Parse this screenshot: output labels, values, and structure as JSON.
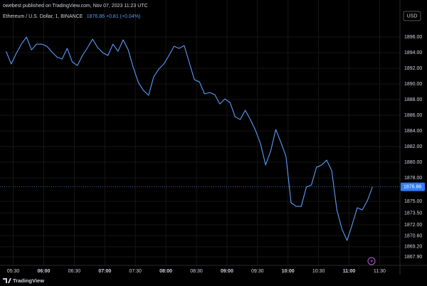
{
  "publisher_line": "owebest published on TradingView.com, Nov 07, 2023 11:23 UTC",
  "quote": "1876.86 +0.81 (+0.04%)",
  "currency": "USD",
  "brand": "TradingView",
  "chart_data": {
    "type": "line",
    "title": "Ethereum / U.S. Dollar, 1, BINANCE",
    "x": [
      "05:23",
      "05:28",
      "05:33",
      "05:38",
      "05:43",
      "05:48",
      "05:53",
      "05:58",
      "06:03",
      "06:08",
      "06:13",
      "06:18",
      "06:23",
      "06:28",
      "06:33",
      "06:38",
      "06:43",
      "06:48",
      "06:53",
      "06:58",
      "07:03",
      "07:08",
      "07:13",
      "07:18",
      "07:23",
      "07:28",
      "07:33",
      "07:38",
      "07:43",
      "07:48",
      "07:53",
      "07:58",
      "08:03",
      "08:08",
      "08:13",
      "08:18",
      "08:23",
      "08:28",
      "08:33",
      "08:38",
      "08:43",
      "08:48",
      "08:53",
      "08:58",
      "09:03",
      "09:08",
      "09:13",
      "09:18",
      "09:23",
      "09:28",
      "09:33",
      "09:38",
      "09:43",
      "09:48",
      "09:53",
      "09:58",
      "10:03",
      "10:08",
      "10:13",
      "10:18",
      "10:23",
      "10:28",
      "10:33",
      "10:38",
      "10:43",
      "10:48",
      "10:53",
      "10:58",
      "11:03",
      "11:08",
      "11:13",
      "11:18",
      "11:23"
    ],
    "series": [
      {
        "color": "#5b9cf6",
        "values": [
          1894.18,
          1892.55,
          1893.91,
          1895.09,
          1896.0,
          1894.36,
          1895.09,
          1895.09,
          1894.82,
          1894.09,
          1893.45,
          1893.18,
          1894.55,
          1892.82,
          1892.36,
          1893.64,
          1894.64,
          1895.73,
          1894.64,
          1894.0,
          1893.64,
          1895.09,
          1894.18,
          1895.64,
          1894.36,
          1892.09,
          1890.18,
          1889.18,
          1888.55,
          1890.91,
          1891.91,
          1892.55,
          1893.64,
          1894.82,
          1894.55,
          1894.91,
          1892.73,
          1890.55,
          1890.27,
          1888.73,
          1888.91,
          1888.64,
          1887.45,
          1888.09,
          1887.64,
          1885.82,
          1885.45,
          1886.64,
          1885.45,
          1884.09,
          1882.36,
          1879.64,
          1881.45,
          1884.18,
          1882.55,
          1880.73,
          1874.82,
          1874.36,
          1874.36,
          1876.82,
          1877.09,
          1879.36,
          1879.64,
          1880.27,
          1878.91,
          1873.91,
          1871.45,
          1870.0,
          1872.0,
          1874.18,
          1873.91,
          1875.09,
          1876.86
        ]
      }
    ],
    "xlim": [
      "05:17",
      "11:50"
    ],
    "xticks": [
      "05:30",
      "06:00",
      "06:30",
      "07:00",
      "07:30",
      "08:00",
      "08:30",
      "09:00",
      "09:30",
      "10:00",
      "10:30",
      "11:00",
      "11:30"
    ],
    "ylim": [
      1866.82,
      1900.73
    ],
    "yticks": [
      {
        "value": 1896,
        "label": "1896.00"
      },
      {
        "value": 1894,
        "label": "1894.00"
      },
      {
        "value": 1892,
        "label": "1892.00"
      },
      {
        "value": 1890,
        "label": "1890.00"
      },
      {
        "value": 1888,
        "label": "1888.00"
      },
      {
        "value": 1886,
        "label": "1886.00"
      },
      {
        "value": 1884,
        "label": "1884.00"
      },
      {
        "value": 1882,
        "label": "1882.00"
      },
      {
        "value": 1880,
        "label": "1880.00"
      },
      {
        "value": 1878,
        "label": "1878.00"
      },
      {
        "value": 1875,
        "label": "1875.00"
      },
      {
        "value": 1873.5,
        "label": "1873.50"
      },
      {
        "value": 1872,
        "label": "1872.00"
      },
      {
        "value": 1870.6,
        "label": "1870.60"
      },
      {
        "value": 1869.2,
        "label": "1869.20"
      },
      {
        "value": 1867.9,
        "label": "1867.90"
      }
    ],
    "grid": true
  }
}
